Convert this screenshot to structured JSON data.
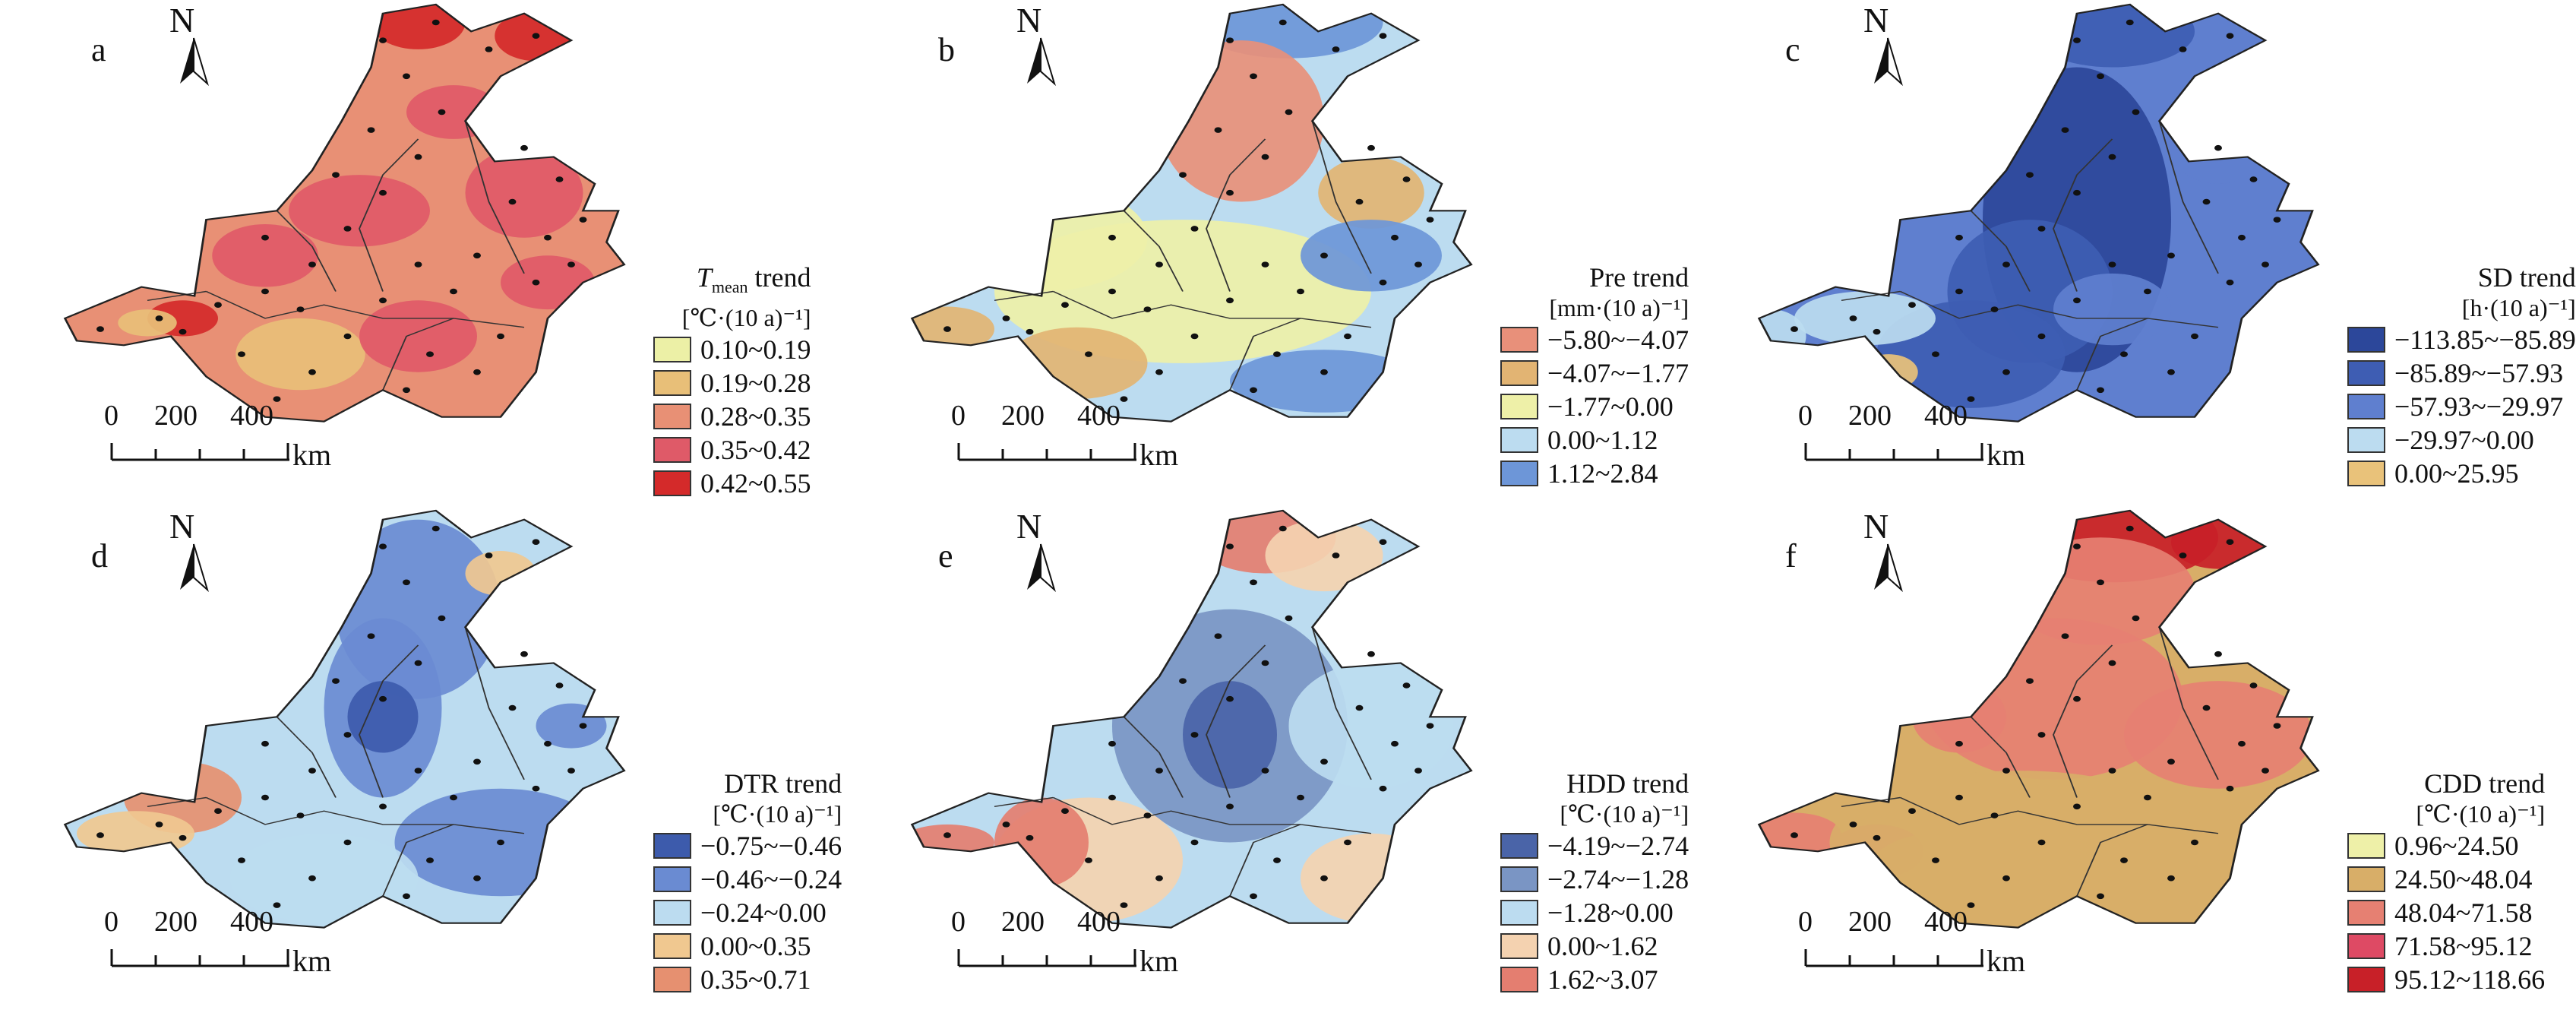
{
  "panels": [
    {
      "label": "a",
      "title_prefix": "T",
      "title_sub": "mean",
      "title_suffix": " trend",
      "unit": "[℃·(10 a)⁻¹]",
      "base_color": "#e89075",
      "legend": [
        {
          "range": "0.10~0.19",
          "color": "#ecf0a6"
        },
        {
          "range": "0.19~0.28",
          "color": "#e8bf78"
        },
        {
          "range": "0.28~0.35",
          "color": "#e89075"
        },
        {
          "range": "0.35~0.42",
          "color": "#df5a68"
        },
        {
          "range": "0.42~0.55",
          "color": "#d42a2a"
        }
      ]
    },
    {
      "label": "b",
      "title_prefix": "Pre trend",
      "title_sub": "",
      "title_suffix": "",
      "unit": "[mm·(10 a)⁻¹]",
      "base_color": "#bcdcf0",
      "legend": [
        {
          "range": "−5.80~−4.07",
          "color": "#e8907a"
        },
        {
          "range": "−4.07~−1.77",
          "color": "#e2b473"
        },
        {
          "range": "−1.77~0.00",
          "color": "#eef0a8"
        },
        {
          "range": "0.00~1.12",
          "color": "#bcdcf0"
        },
        {
          "range": "1.12~2.84",
          "color": "#6d96d8"
        }
      ]
    },
    {
      "label": "c",
      "title_prefix": "SD trend",
      "title_sub": "",
      "title_suffix": "",
      "unit": "[h·(10 a)⁻¹]",
      "base_color": "#5f7fcf",
      "legend": [
        {
          "range": "−113.85~−85.89",
          "color": "#2c479a"
        },
        {
          "range": "−85.89~−57.93",
          "color": "#3e5db3"
        },
        {
          "range": "−57.93~−29.97",
          "color": "#5f7fcf"
        },
        {
          "range": "−29.97~0.00",
          "color": "#bcdcf0"
        },
        {
          "range": "0.00~25.95",
          "color": "#e9c27a"
        }
      ]
    },
    {
      "label": "d",
      "title_prefix": "DTR trend",
      "title_sub": "",
      "title_suffix": "",
      "unit": "[℃·(10 a)⁻¹]",
      "base_color": "#bcdcf0",
      "legend": [
        {
          "range": "−0.75~−0.46",
          "color": "#3d5bac"
        },
        {
          "range": "−0.46~−0.24",
          "color": "#6a8bd2"
        },
        {
          "range": "−0.24~0.00",
          "color": "#bcdcf0"
        },
        {
          "range": "0.00~0.35",
          "color": "#f0c890"
        },
        {
          "range": "0.35~0.71",
          "color": "#e69070"
        }
      ]
    },
    {
      "label": "e",
      "title_prefix": "HDD trend",
      "title_sub": "",
      "title_suffix": "",
      "unit": "[℃·(10 a)⁻¹]",
      "base_color": "#bcdcf0",
      "legend": [
        {
          "range": "−4.19~−2.74",
          "color": "#4a64a8"
        },
        {
          "range": "−2.74~−1.28",
          "color": "#7a95c4"
        },
        {
          "range": "−1.28~0.00",
          "color": "#bcdcf0"
        },
        {
          "range": "0.00~1.62",
          "color": "#f4d2b0"
        },
        {
          "range": "1.62~3.07",
          "color": "#e47e70"
        }
      ]
    },
    {
      "label": "f",
      "title_prefix": "CDD trend",
      "title_sub": "",
      "title_suffix": "",
      "unit": "[℃·(10 a)⁻¹]",
      "base_color": "#d8ae68",
      "legend": [
        {
          "range": "0.96~24.50",
          "color": "#eef0a8"
        },
        {
          "range": "24.50~48.04",
          "color": "#d8ae68"
        },
        {
          "range": "48.04~71.58",
          "color": "#e68072"
        },
        {
          "range": "71.58~95.12",
          "color": "#de4a64"
        },
        {
          "range": "95.12~118.66",
          "color": "#c82028"
        }
      ]
    }
  ],
  "north_label": "N",
  "scale": {
    "t0": "0",
    "t1": "200",
    "t2": "400",
    "unit": "km"
  }
}
